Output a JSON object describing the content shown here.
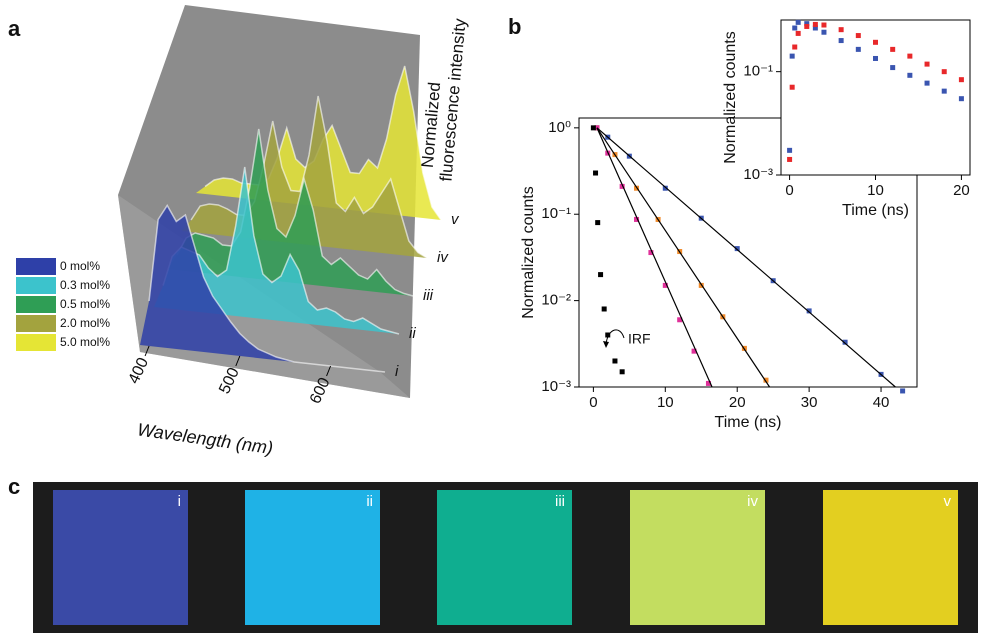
{
  "panels": [
    "a",
    "b",
    "c"
  ],
  "chart_data": [
    {
      "type": "waterfall",
      "x": [
        400,
        410,
        420,
        430,
        440,
        450,
        460,
        470,
        480,
        490,
        500,
        510,
        520,
        530,
        540,
        550,
        560,
        570,
        580,
        590,
        600,
        610,
        620,
        630,
        640,
        650,
        660
      ],
      "xlim": [
        390,
        660
      ],
      "ylim": [
        0,
        1
      ],
      "xticks": [
        400,
        500,
        600
      ],
      "xlabel": "Wavelength (nm)",
      "zlabel": [
        "Normalized",
        "fluorescence intensity"
      ],
      "series": [
        {
          "name": "0 mol%",
          "label": "i",
          "color": "#2e40a8",
          "values": [
            0.3,
            0.85,
            0.95,
            0.85,
            0.9,
            0.7,
            0.5,
            0.38,
            0.3,
            0.22,
            0.15,
            0.1,
            0.06,
            0.04,
            0.02,
            0.01,
            0,
            0,
            0,
            0,
            0,
            0,
            0,
            0,
            0,
            0,
            0
          ]
        },
        {
          "name": "0.3 mol%",
          "label": "ii",
          "color": "#3cc3cc",
          "values": [
            0.15,
            0.35,
            0.42,
            0.4,
            0.38,
            0.3,
            0.25,
            0.3,
            0.6,
            1.0,
            0.55,
            0.3,
            0.25,
            0.3,
            0.45,
            0.35,
            0.15,
            0.1,
            0.12,
            0.1,
            0.06,
            0.05,
            0.08,
            0.05,
            0.02,
            0.01,
            0
          ]
        },
        {
          "name": "0.5 mol%",
          "label": "iii",
          "color": "#2f9e55",
          "values": [
            0.1,
            0.22,
            0.26,
            0.25,
            0.24,
            0.2,
            0.2,
            0.3,
            0.6,
            1.0,
            0.6,
            0.35,
            0.3,
            0.45,
            0.7,
            0.5,
            0.2,
            0.15,
            0.2,
            0.15,
            0.1,
            0.08,
            0.15,
            0.08,
            0.03,
            0.01,
            0
          ]
        },
        {
          "name": "2.0 mol%",
          "label": "iv",
          "color": "#a3a33e",
          "values": [
            0.08,
            0.18,
            0.2,
            0.2,
            0.18,
            0.15,
            0.15,
            0.25,
            0.5,
            0.8,
            0.5,
            0.35,
            0.35,
            0.6,
            1.0,
            0.7,
            0.3,
            0.25,
            0.35,
            0.25,
            0.3,
            0.4,
            0.5,
            0.3,
            0.1,
            0.03,
            0
          ]
        },
        {
          "name": "5.0 mol%",
          "label": "v",
          "color": "#e5e535",
          "values": [
            0.05,
            0.1,
            0.12,
            0.12,
            0.1,
            0.1,
            0.1,
            0.15,
            0.3,
            0.5,
            0.3,
            0.25,
            0.3,
            0.45,
            0.55,
            0.4,
            0.25,
            0.25,
            0.35,
            0.3,
            0.5,
            0.8,
            1.0,
            0.7,
            0.3,
            0.08,
            0
          ]
        }
      ]
    },
    {
      "type": "scatter",
      "yscale": "log",
      "xlim": [
        -2,
        45
      ],
      "ylim": [
        0.001,
        1.3
      ],
      "xticks": [
        0,
        10,
        20,
        30,
        40
      ],
      "yticks": [
        {
          "value": 1,
          "label": "10⁰"
        },
        {
          "value": 0.1,
          "label": "10⁻¹"
        },
        {
          "value": 0.01,
          "label": "10⁻²"
        },
        {
          "value": 0.001,
          "label": "10⁻³"
        }
      ],
      "xlabel": "Time (ns)",
      "ylabel": "Normalized counts",
      "annotation": "IRF",
      "series": [
        {
          "color": "#3a55b0",
          "x": [
            0.5,
            2,
            5,
            10,
            15,
            20,
            25,
            30,
            35,
            40,
            43
          ],
          "values": [
            1,
            0.78,
            0.47,
            0.2,
            0.09,
            0.04,
            0.017,
            0.0076,
            0.0033,
            0.0014,
            0.0009
          ]
        },
        {
          "color": "#f08a2a",
          "x": [
            0.5,
            3,
            6,
            9,
            12,
            15,
            18,
            21,
            24
          ],
          "values": [
            1,
            0.49,
            0.2,
            0.087,
            0.037,
            0.015,
            0.0065,
            0.0028,
            0.0012
          ]
        },
        {
          "color": "#e0309a",
          "x": [
            0.5,
            2,
            4,
            6,
            8,
            10,
            12,
            14,
            16
          ],
          "values": [
            1,
            0.51,
            0.21,
            0.087,
            0.036,
            0.015,
            0.006,
            0.0026,
            0.0011
          ]
        },
        {
          "color": "#000000",
          "x": [
            0,
            0.3,
            0.6,
            1,
            1.5,
            2,
            3,
            4
          ],
          "values": [
            1,
            0.3,
            0.08,
            0.02,
            0.008,
            0.004,
            0.002,
            0.0015
          ]
        }
      ],
      "fits": [
        {
          "color": "#000000",
          "x": [
            0.5,
            42
          ],
          "values": [
            1,
            0.001
          ]
        },
        {
          "color": "#000000",
          "x": [
            0.5,
            24.5
          ],
          "values": [
            1,
            0.001
          ]
        },
        {
          "color": "#000000",
          "x": [
            0.5,
            16.5
          ],
          "values": [
            1,
            0.001
          ]
        }
      ]
    },
    {
      "type": "scatter",
      "yscale": "log",
      "xlim": [
        -1,
        21
      ],
      "ylim": [
        0.001,
        1
      ],
      "xticks": [
        0,
        10,
        20
      ],
      "yticks": [
        {
          "value": 0.1,
          "label": "10⁻¹"
        },
        {
          "value": 0.001,
          "label": "10⁻³"
        }
      ],
      "xlabel": "Time (ns)",
      "ylabel": "Normalized counts",
      "series": [
        {
          "color": "#3a55b0",
          "x": [
            0,
            0.3,
            0.6,
            1,
            2,
            3,
            4,
            6,
            8,
            10,
            12,
            14,
            16,
            18,
            20
          ],
          "values": [
            0.003,
            0.2,
            0.7,
            0.9,
            0.85,
            0.7,
            0.58,
            0.4,
            0.27,
            0.18,
            0.12,
            0.085,
            0.06,
            0.042,
            0.03
          ]
        },
        {
          "color": "#e8282a",
          "x": [
            0,
            0.3,
            0.6,
            1,
            2,
            3,
            4,
            6,
            8,
            10,
            12,
            14,
            16,
            18,
            20
          ],
          "values": [
            0.002,
            0.05,
            0.3,
            0.55,
            0.75,
            0.82,
            0.8,
            0.65,
            0.5,
            0.37,
            0.27,
            0.2,
            0.14,
            0.1,
            0.07
          ]
        }
      ]
    }
  ],
  "samples": {
    "labels": [
      "i",
      "ii",
      "iii",
      "iv",
      "v"
    ],
    "colors": [
      "#3a4aa6",
      "#1fb2e6",
      "#0fae90",
      "#c3dd60",
      "#e3cf20"
    ]
  }
}
